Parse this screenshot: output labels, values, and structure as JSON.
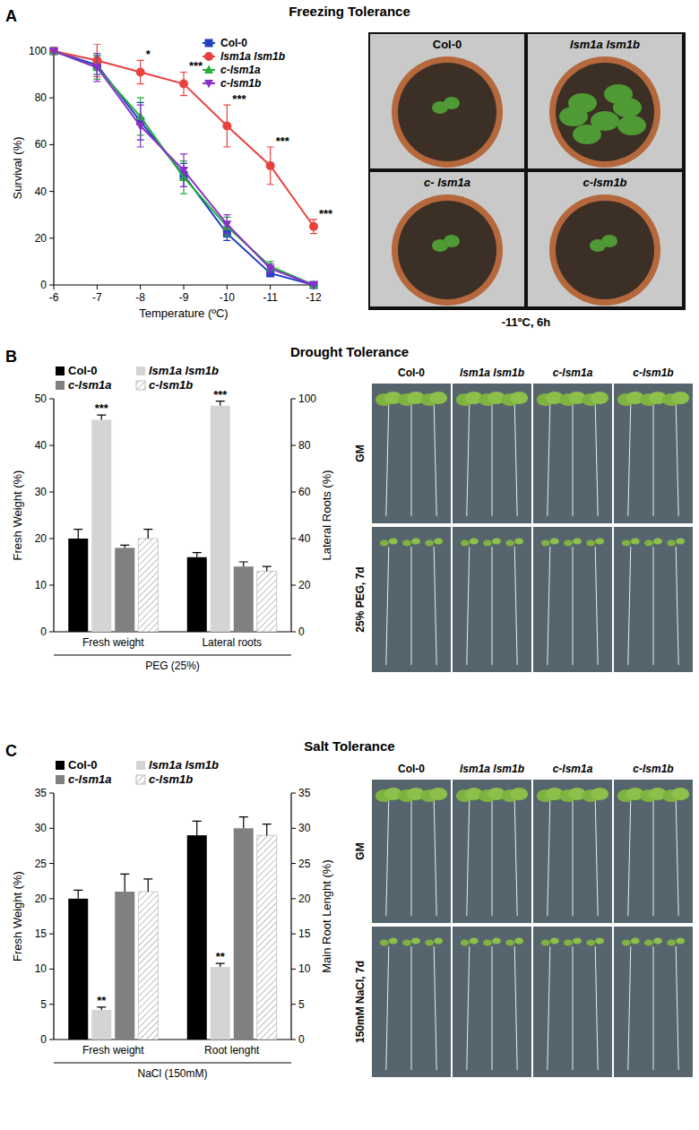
{
  "panels": [
    {
      "letter": "A",
      "title": "Freezing Tolerance"
    },
    {
      "letter": "B",
      "title": "Drought Tolerance"
    },
    {
      "letter": "C",
      "title": "Salt Tolerance"
    }
  ],
  "chart_data": [
    {
      "type": "line",
      "xlabel": "Temperature (ºC)",
      "ylabel": "Survival (%)",
      "x": [
        -6,
        -7,
        -8,
        -9,
        -10,
        -11,
        -12
      ],
      "xlim": [
        -6,
        -12
      ],
      "xticks": [
        -6,
        -7,
        -8,
        -9,
        -10,
        -11,
        -12
      ],
      "ylim": [
        0,
        100
      ],
      "yticks": [
        0,
        20,
        40,
        60,
        80,
        100
      ],
      "legend": "top-right",
      "series": [
        {
          "name": "Col-0",
          "color": "#1f3fc4",
          "marker": "square",
          "values": [
            100,
            94,
            70,
            47,
            22,
            5,
            0
          ],
          "errors": [
            0,
            4,
            8,
            5,
            3,
            1,
            0
          ]
        },
        {
          "name": "lsm1a lsm1b",
          "color": "#e8423f",
          "marker": "circle",
          "values": [
            100,
            96,
            91,
            86,
            68,
            51,
            25
          ],
          "errors": [
            0,
            7,
            5,
            5,
            9,
            8,
            3
          ],
          "significance": [
            null,
            null,
            "*",
            "***",
            "***",
            "***",
            "***"
          ]
        },
        {
          "name": "c-lsm1a",
          "color": "#22b03a",
          "marker": "triangle",
          "values": [
            100,
            93,
            72,
            46,
            25,
            8,
            0
          ],
          "errors": [
            0,
            5,
            8,
            7,
            4,
            2,
            0
          ]
        },
        {
          "name": "c-lsm1b",
          "color": "#8b2fc9",
          "marker": "triangle-down",
          "values": [
            100,
            93,
            68,
            49,
            26,
            7,
            0
          ],
          "errors": [
            0,
            6,
            9,
            7,
            4,
            2,
            0
          ]
        }
      ]
    },
    {
      "type": "bar",
      "categories": [
        "Fresh weight"
      ],
      "xlabel": "PEG (25%)",
      "ylabel": "Fresh Weight (%)",
      "ylim": [
        0,
        50
      ],
      "yticks": [
        0,
        10,
        20,
        30,
        40,
        50
      ],
      "legend": "top-left",
      "series": [
        {
          "name": "Col-0",
          "color": "#000000",
          "values": [
            20
          ],
          "errors": [
            2
          ]
        },
        {
          "name": "lsm1a lsm1b",
          "color": "#d4d4d4",
          "values": [
            45.5
          ],
          "errors": [
            1
          ],
          "significance": [
            "***"
          ]
        },
        {
          "name": "c-lsm1a",
          "color": "#808080",
          "values": [
            18
          ],
          "errors": [
            0.6
          ]
        },
        {
          "name": "c-lsm1b",
          "color": "#bdbdbd",
          "line_style": "hatched",
          "values": [
            20
          ],
          "errors": [
            2
          ]
        }
      ]
    },
    {
      "type": "bar",
      "categories": [
        "Lateral roots"
      ],
      "y2label": "Lateral Roots (%)",
      "y2lim": [
        0,
        100
      ],
      "y2ticks": [
        0,
        20,
        40,
        60,
        80,
        100
      ],
      "series": [
        {
          "axis": "y2",
          "color": "#000000",
          "values": [
            32
          ],
          "errors": [
            2
          ]
        },
        {
          "axis": "y2",
          "color": "#d4d4d4",
          "values": [
            97
          ],
          "errors": [
            2
          ],
          "significance": [
            "***"
          ]
        },
        {
          "axis": "y2",
          "color": "#808080",
          "values": [
            28
          ],
          "errors": [
            2
          ]
        },
        {
          "axis": "y2",
          "color": "#bdbdbd",
          "line_style": "hatched",
          "values": [
            26
          ],
          "errors": [
            2
          ]
        }
      ]
    },
    {
      "type": "bar",
      "categories": [
        "Fresh weight"
      ],
      "xlabel": "NaCl (150mM)",
      "ylabel": "Fresh Weight (%)",
      "ylim": [
        0,
        35
      ],
      "yticks": [
        0,
        5,
        10,
        15,
        20,
        25,
        30,
        35
      ],
      "legend": "top-left",
      "series": [
        {
          "name": "Col-0",
          "color": "#000000",
          "values": [
            20
          ],
          "errors": [
            1.2
          ]
        },
        {
          "name": "lsm1a lsm1b",
          "color": "#d4d4d4",
          "values": [
            4.2
          ],
          "errors": [
            0.4
          ],
          "significance": [
            "**"
          ]
        },
        {
          "name": "c-lsm1a",
          "color": "#808080",
          "values": [
            21
          ],
          "errors": [
            2.5
          ]
        },
        {
          "name": "c-lsm1b",
          "color": "#bdbdbd",
          "line_style": "hatched",
          "values": [
            21
          ],
          "errors": [
            1.8
          ]
        }
      ]
    },
    {
      "type": "bar",
      "categories": [
        "Root lenght"
      ],
      "y2label": "Main Root Lenght (%)",
      "y2lim": [
        0,
        35
      ],
      "y2ticks": [
        0,
        5,
        10,
        15,
        20,
        25,
        30,
        35
      ],
      "series": [
        {
          "axis": "y2",
          "color": "#000000",
          "values": [
            29
          ],
          "errors": [
            2
          ]
        },
        {
          "axis": "y2",
          "color": "#d4d4d4",
          "values": [
            10.3
          ],
          "errors": [
            0.5
          ],
          "significance": [
            "**"
          ]
        },
        {
          "axis": "y2",
          "color": "#808080",
          "values": [
            30
          ],
          "errors": [
            1.6
          ]
        },
        {
          "axis": "y2",
          "color": "#bdbdbd",
          "line_style": "hatched",
          "values": [
            29
          ],
          "errors": [
            1.6
          ]
        }
      ]
    }
  ],
  "photos": [
    {
      "labels": [
        "Col-0",
        "lsm1a lsm1b",
        "c- lsm1a",
        "c-lsm1b"
      ],
      "caption": "-11ºC, 6h"
    },
    {
      "columns": [
        "Col-0",
        "lsm1a lsm1b",
        "c-lsm1a",
        "c-lsm1b"
      ],
      "rows": [
        "GM",
        "25% PEG, 7d"
      ]
    },
    {
      "columns": [
        "Col-0",
        "lsm1a lsm1b",
        "c-lsm1a",
        "c-lsm1b"
      ],
      "rows": [
        "GM",
        "150mM NaCl, 7d"
      ]
    }
  ]
}
